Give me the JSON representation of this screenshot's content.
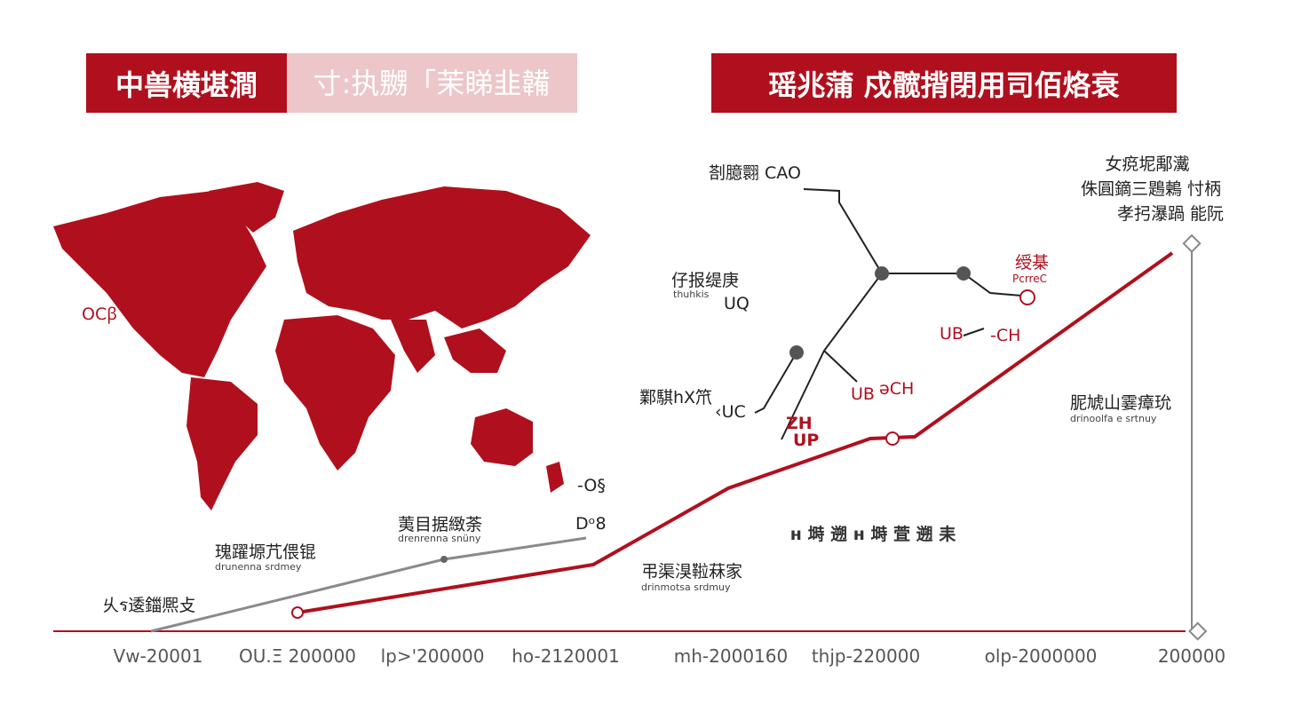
{
  "header": {
    "left_title": "中兽横堪澗",
    "left_subtitle": "寸:执嬲「茉睇韭韛",
    "right_title": "瑶兆蒲 戍髋揹閉用司佰烙衰"
  },
  "map": {
    "label": "OCꞵ",
    "note": "-O§"
  },
  "tree": {
    "nodes": [
      {
        "label": "剳臆翾  CAO"
      },
      {
        "label": "仔报缇庚",
        "sub": "thuhkis",
        "code": "UQ"
      },
      {
        "label": "鄴騏hX笊",
        "code": "‹UC"
      },
      {
        "label": "UB",
        "code": "ǝCH"
      },
      {
        "label": "ZH",
        "code": "UP"
      },
      {
        "label": "UB",
        "code": "-CH"
      },
      {
        "label": "绶棊",
        "code": "PcrreC"
      }
    ]
  },
  "annotations": {
    "top_right": [
      "女痥坭鄅瀻",
      "侏圓鏑三鶗鶫 忖柄",
      "孝㧈瀑踻 能阮"
    ],
    "gray_mid": {
      "label": "荑目据緻荼",
      "sub": "drenrenna snüny"
    },
    "gray_left": {
      "label": "瑰躍塬芁偎锟",
      "sub": "drunenna srdmey"
    },
    "start": "乆ร逶鍿熈攴",
    "gray_end": "Dᵒ8",
    "red_mid": {
      "label": "弔渠湨鞡菻家",
      "sub": "drinmotsa srdmuy"
    },
    "center": "ʜ 塒  遡  ʜ  塒  萓  遡  耒",
    "right_mid": {
      "label": "胒虓山霎瘴玧",
      "sub": "drinoolfa e srtnuy"
    }
  },
  "x_labels": [
    "Vw-20001",
    "OU.Ξ 200000",
    "lp>'200000",
    "ho-2120001",
    "mh-2000160",
    "thjp-220000",
    "olp-2000000",
    "200000"
  ]
}
